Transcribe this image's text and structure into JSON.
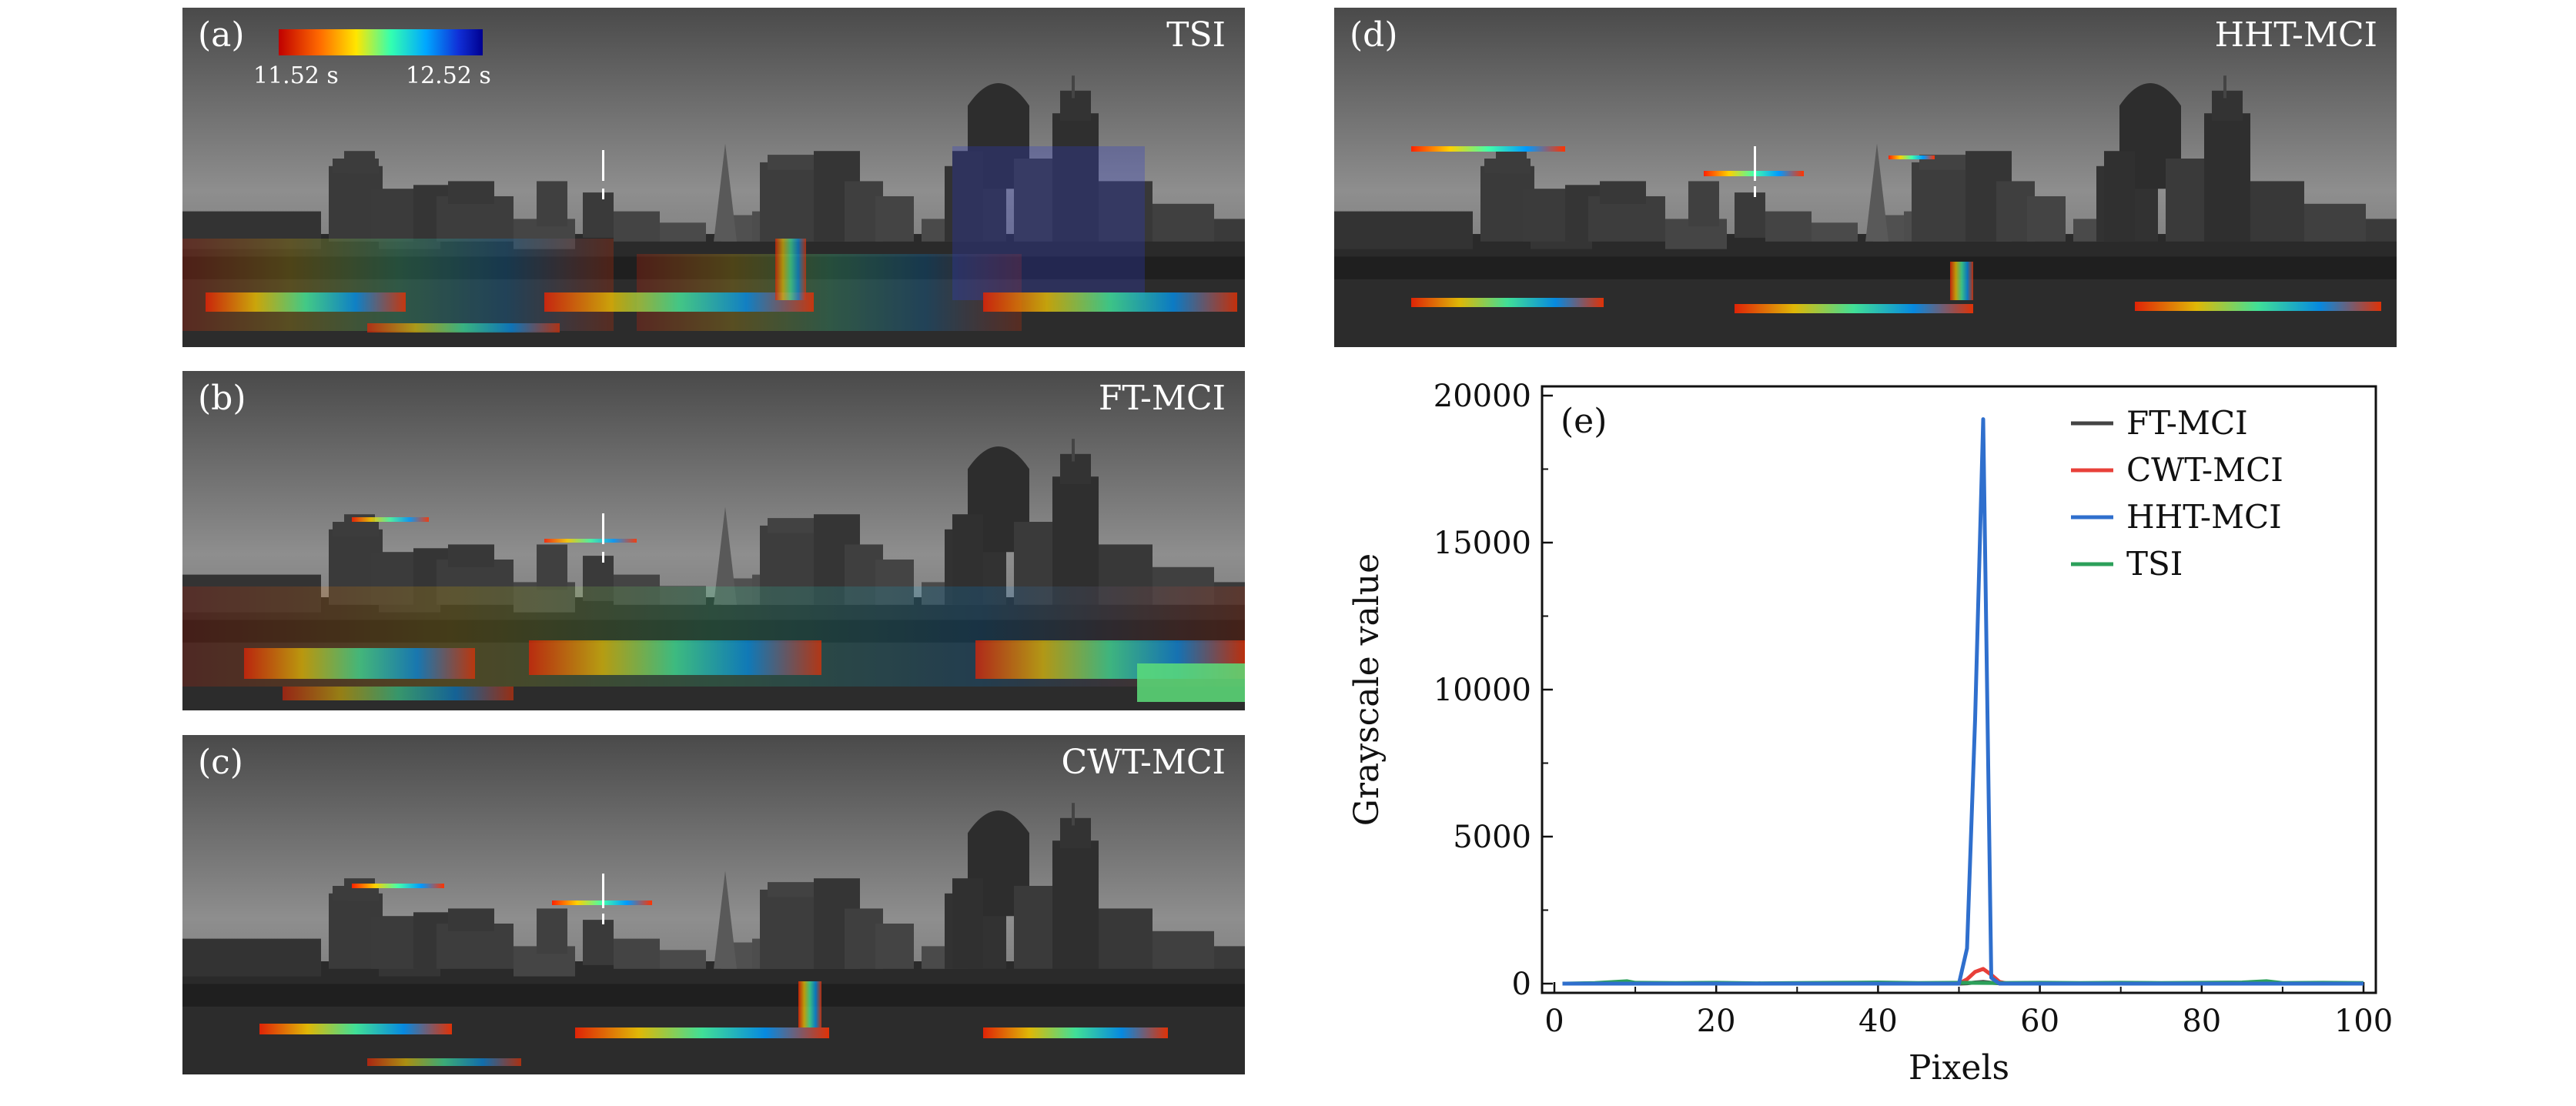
{
  "figure": {
    "panels": [
      {
        "id": "a",
        "label": "(a)",
        "title": "TSI",
        "colorbar": {
          "min_label": "11.52 s",
          "max_label": "12.52 s"
        }
      },
      {
        "id": "b",
        "label": "(b)",
        "title": "FT-MCI"
      },
      {
        "id": "c",
        "label": "(c)",
        "title": "CWT-MCI"
      },
      {
        "id": "d",
        "label": "(d)",
        "title": "HHT-MCI"
      }
    ]
  },
  "chart_data": {
    "type": "line",
    "panel_label": "(e)",
    "title": "",
    "xlabel": "Pixels",
    "ylabel": "Grayscale value",
    "xlim": [
      0,
      100
    ],
    "ylim": [
      0,
      20000
    ],
    "xticks": [
      0,
      20,
      40,
      60,
      80,
      100
    ],
    "yticks": [
      0,
      5000,
      10000,
      15000,
      20000
    ],
    "legend_position": "top-right",
    "series": [
      {
        "name": "FT-MCI",
        "color": "#444444",
        "x": [
          1,
          10,
          20,
          30,
          40,
          45,
          50,
          51,
          52,
          53,
          54,
          55,
          56,
          60,
          70,
          80,
          90,
          100
        ],
        "y": [
          0,
          0,
          0,
          0,
          0,
          0,
          0,
          10,
          40,
          60,
          30,
          10,
          0,
          0,
          0,
          0,
          0,
          0
        ]
      },
      {
        "name": "CWT-MCI",
        "color": "#e8403a",
        "x": [
          1,
          10,
          20,
          30,
          40,
          45,
          50,
          51,
          52,
          53,
          54,
          55,
          56,
          60,
          70,
          80,
          90,
          100
        ],
        "y": [
          0,
          0,
          0,
          0,
          0,
          0,
          0,
          150,
          400,
          500,
          300,
          60,
          0,
          0,
          0,
          0,
          0,
          0
        ]
      },
      {
        "name": "HHT-MCI",
        "color": "#2f6fcd",
        "x": [
          1,
          10,
          20,
          30,
          40,
          45,
          50,
          51,
          52,
          53,
          54,
          55,
          56,
          60,
          70,
          80,
          90,
          100
        ],
        "y": [
          0,
          0,
          0,
          0,
          0,
          0,
          0,
          1200,
          9000,
          19200,
          200,
          0,
          0,
          0,
          0,
          0,
          0,
          0
        ]
      },
      {
        "name": "TSI",
        "color": "#2ca05a",
        "x": [
          1,
          5,
          9,
          10,
          15,
          20,
          25,
          30,
          35,
          40,
          45,
          50,
          55,
          60,
          65,
          70,
          75,
          80,
          85,
          88,
          90,
          95,
          100
        ],
        "y": [
          0,
          20,
          80,
          30,
          20,
          30,
          10,
          20,
          30,
          40,
          20,
          30,
          20,
          30,
          20,
          30,
          20,
          30,
          40,
          80,
          20,
          30,
          20
        ]
      }
    ]
  }
}
